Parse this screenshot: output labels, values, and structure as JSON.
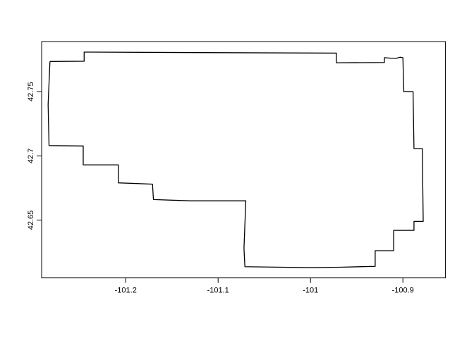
{
  "chart_data": {
    "type": "map-outline",
    "title": "",
    "xlabel": "",
    "ylabel": "",
    "xlim": [
      -101.291,
      -100.854
    ],
    "ylim": [
      42.605,
      42.789
    ],
    "x_ticks": [
      {
        "value": -101.2,
        "label": "-101.2"
      },
      {
        "value": -101.1,
        "label": "-101.1"
      },
      {
        "value": -101.0,
        "label": "-101"
      },
      {
        "value": -100.9,
        "label": "-100.9"
      }
    ],
    "y_ticks": [
      {
        "value": 42.65,
        "label": "42.65"
      },
      {
        "value": 42.7,
        "label": "42.7"
      },
      {
        "value": 42.75,
        "label": "42.75"
      }
    ],
    "polygon": [
      [
        -101.282,
        42.7735
      ],
      [
        -101.245,
        42.7737
      ],
      [
        -101.245,
        42.7808
      ],
      [
        -100.972,
        42.78
      ],
      [
        -100.972,
        42.7725
      ],
      [
        -100.92,
        42.7727
      ],
      [
        -100.92,
        42.7765
      ],
      [
        -100.912,
        42.776
      ],
      [
        -100.907,
        42.776
      ],
      [
        -100.903,
        42.7768
      ],
      [
        -100.9,
        42.7765
      ],
      [
        -100.899,
        42.75
      ],
      [
        -100.889,
        42.75
      ],
      [
        -100.888,
        42.7057
      ],
      [
        -100.879,
        42.7057
      ],
      [
        -100.878,
        42.649
      ],
      [
        -100.888,
        42.649
      ],
      [
        -100.888,
        42.642
      ],
      [
        -100.91,
        42.642
      ],
      [
        -100.91,
        42.6262
      ],
      [
        -100.93,
        42.6262
      ],
      [
        -100.93,
        42.614
      ],
      [
        -100.968,
        42.6133
      ],
      [
        -101.0,
        42.613
      ],
      [
        -101.071,
        42.6137
      ],
      [
        -101.072,
        42.628
      ],
      [
        -101.07,
        42.665
      ],
      [
        -101.13,
        42.665
      ],
      [
        -101.17,
        42.666
      ],
      [
        -101.171,
        42.678
      ],
      [
        -101.208,
        42.679
      ],
      [
        -101.208,
        42.693
      ],
      [
        -101.246,
        42.693
      ],
      [
        -101.246,
        42.7077
      ],
      [
        -101.283,
        42.708
      ],
      [
        -101.284,
        42.74
      ],
      [
        -101.282,
        42.7735
      ]
    ]
  }
}
